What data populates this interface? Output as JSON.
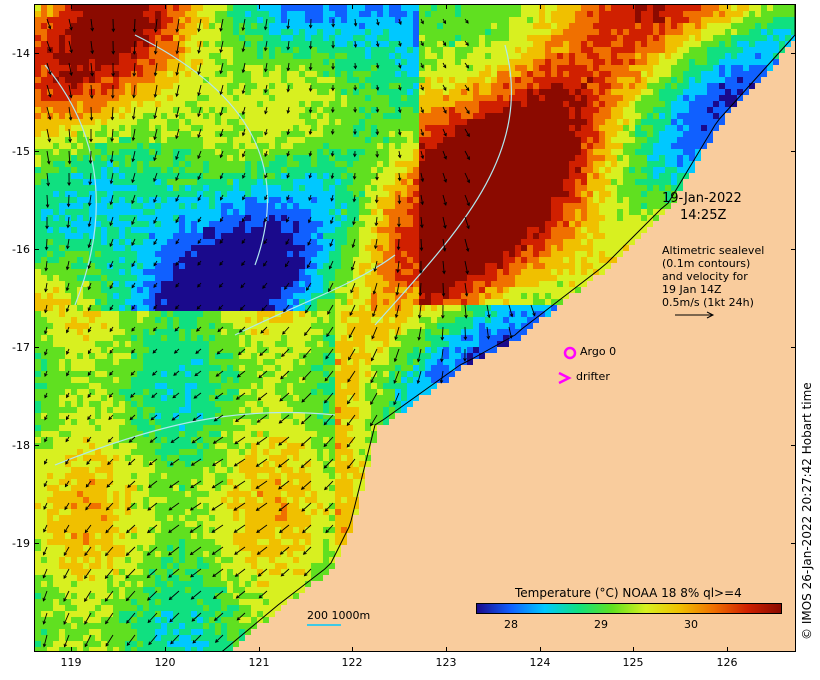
{
  "map": {
    "timestamp_date": "19-Jan-2022",
    "timestamp_time": "14:25Z",
    "altimetry_note": "Altimetric sealevel\n(0.1m contours)\nand velocity for\n19 Jan 14Z\n0.5m/s (1kt 24h)",
    "argo_label": "Argo 0",
    "drifter_label": "drifter",
    "scale_label": "200  1000m",
    "copyright": "© IMOS 26-Jan-2022 20:27:42 Hobart time",
    "lat_ticks": [
      "-14",
      "-15",
      "-16",
      "-17",
      "-18",
      "-19"
    ],
    "lon_ticks": [
      "119",
      "120",
      "121",
      "122",
      "123",
      "124",
      "125",
      "126"
    ],
    "lat_range": [
      -20.1,
      -13.5
    ],
    "lon_range": [
      118.6,
      126.7
    ]
  },
  "legend": {
    "title": "Temperature (°C) NOAA 18 8% ql>=4",
    "ticks": [
      "28",
      "29",
      "30"
    ],
    "tick_values": [
      28,
      29,
      30
    ],
    "range": [
      27.6,
      31.0
    ],
    "colors": [
      "#1a0a8c",
      "#1060ff",
      "#00c8ff",
      "#10e080",
      "#60e020",
      "#d8f020",
      "#f0c000",
      "#f07000",
      "#d02000",
      "#8b0a00"
    ]
  },
  "colors": {
    "land": "#f9cc9d",
    "argo": "#ff00ff",
    "drifter": "#ff00ff",
    "contour": "#b0e8f0"
  }
}
